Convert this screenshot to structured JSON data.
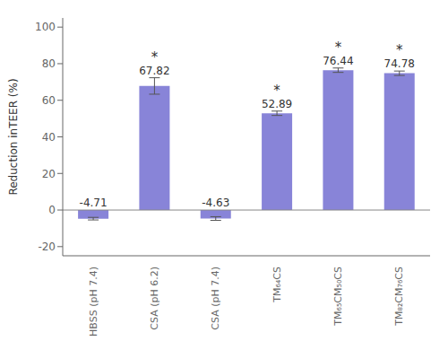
{
  "chart_data": {
    "type": "bar",
    "categories": [
      "HBSS (pH 7.4)",
      "CSA (pH 6.2)",
      "CSA (pH 7.4)",
      "TM₆₄CS",
      "TM₆₅CM₅₀CS",
      "TM₈₂CM₇₆CS"
    ],
    "values": [
      -4.71,
      67.82,
      -4.63,
      52.89,
      76.44,
      74.78
    ],
    "errors": [
      0.7,
      4.5,
      1.0,
      1.2,
      1.2,
      1.2
    ],
    "data_labels": true,
    "value_labels": [
      "-4.71",
      "67.82",
      "-4.63",
      "52.89",
      "76.44",
      "74.78"
    ],
    "significance_labels": [
      null,
      "*",
      null,
      "*",
      "*",
      "*"
    ],
    "color": "#8884d8",
    "ylabel": "Reduction inTEER (%)",
    "ylim": [
      -25,
      105
    ],
    "yticks": [
      -20,
      0,
      20,
      40,
      60,
      80,
      100
    ],
    "grid": false
  }
}
